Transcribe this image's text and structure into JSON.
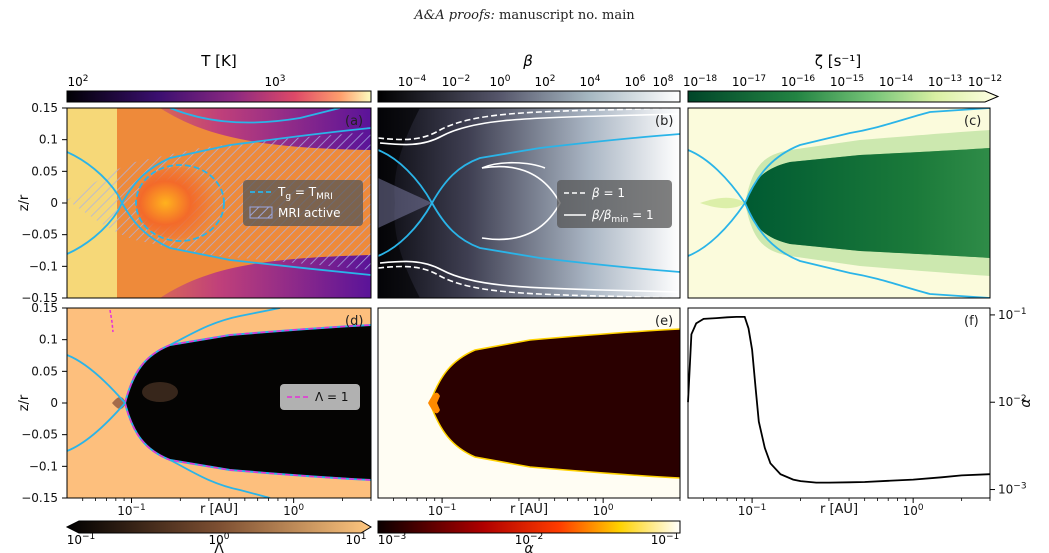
{
  "header": {
    "journal": "A&A proofs:",
    "manuscript": "manuscript no. main"
  },
  "colors": {
    "contour_cyan": "#2ab4e8",
    "lambda_magenta": "#e62fd8",
    "mri_hatch": "#9aa6e0"
  },
  "chart_data": [
    {
      "panel": "(a)",
      "type": "heatmap",
      "quantity": "T [K]",
      "colormap": "plasma",
      "colorbar": {
        "label": "T [K]",
        "scale": "log",
        "ticks": [
          "10^2",
          "10^3"
        ],
        "range": [
          80,
          2500
        ]
      },
      "ylabel": "z/r",
      "yticks": [
        "0.15",
        "0.1",
        "0.05",
        "0",
        "-0.05",
        "-0.1",
        "-0.15"
      ],
      "ylim": [
        -0.15,
        0.15
      ],
      "xlim": [
        0.04,
        3
      ],
      "xscale": "log",
      "legend": [
        "T_g = T_MRI",
        "MRI active"
      ]
    },
    {
      "panel": "(b)",
      "type": "heatmap",
      "quantity": "β",
      "colormap": "bone",
      "colorbar": {
        "label": "β",
        "scale": "log",
        "ticks": [
          "10^-4",
          "10^-2",
          "10^0",
          "10^2",
          "10^4",
          "10^6",
          "10^8"
        ],
        "range": [
          1e-05,
          300000000
        ]
      },
      "xlim": [
        0.04,
        3
      ],
      "ylim": [
        -0.15,
        0.15
      ],
      "legend": [
        "β = 1",
        "β/β_min = 1"
      ]
    },
    {
      "panel": "(c)",
      "type": "heatmap",
      "quantity": "ζ [s^-1]",
      "colormap": "YlGn",
      "colorbar": {
        "label": "ζ [s⁻¹]",
        "scale": "log",
        "ticks": [
          "10^-18",
          "10^-17",
          "10^-16",
          "10^-15",
          "10^-14",
          "10^-13",
          "10^-12"
        ],
        "range": [
          1e-18,
          1e-12
        ]
      },
      "xlim": [
        0.04,
        3
      ],
      "ylim": [
        -0.15,
        0.15
      ]
    },
    {
      "panel": "(d)",
      "type": "heatmap",
      "quantity": "Λ",
      "colormap": "copper",
      "colorbar": {
        "label": "Λ",
        "scale": "log",
        "ticks": [
          "10^-1",
          "10^0",
          "10^1"
        ],
        "range": [
          0.1,
          10
        ]
      },
      "xlabel": "r [AU]",
      "xticks": [
        "10^-1",
        "10^0"
      ],
      "ylabel": "z/r",
      "yticks": [
        "0.15",
        "0.1",
        "0.05",
        "0",
        "-0.05",
        "-0.1",
        "-0.15"
      ],
      "xlim": [
        0.04,
        3
      ],
      "ylim": [
        -0.15,
        0.15
      ],
      "legend": [
        "Λ = 1"
      ]
    },
    {
      "panel": "(e)",
      "type": "heatmap",
      "quantity": "α",
      "colormap": "hot",
      "colorbar": {
        "label": "α",
        "scale": "log",
        "ticks": [
          "10^-3",
          "10^-2",
          "10^-1"
        ],
        "range": [
          0.001,
          0.1
        ]
      },
      "xlabel": "r [AU]",
      "xticks": [
        "10^-1",
        "10^0"
      ],
      "xlim": [
        0.04,
        3
      ],
      "ylim": [
        -0.15,
        0.15
      ]
    },
    {
      "panel": "(f)",
      "type": "line",
      "xlabel": "r [AU]",
      "xticks": [
        "10^-1",
        "10^0"
      ],
      "ylabel": "α",
      "yticks": [
        "10^-1",
        "10^-2",
        "10^-3"
      ],
      "xscale": "log",
      "yscale": "log",
      "xlim": [
        0.04,
        3
      ],
      "ylim": [
        0.0008,
        0.12
      ],
      "series": [
        {
          "x": [
            0.04,
            0.042,
            0.045,
            0.05,
            0.06,
            0.07,
            0.08,
            0.09,
            0.095,
            0.1,
            0.105,
            0.11,
            0.12,
            0.13,
            0.15,
            0.18,
            0.2,
            0.25,
            0.3,
            0.4,
            0.5,
            0.7,
            1.0,
            1.5,
            2.0,
            3.0
          ],
          "y": [
            0.01,
            0.06,
            0.08,
            0.09,
            0.092,
            0.094,
            0.095,
            0.095,
            0.07,
            0.04,
            0.015,
            0.006,
            0.003,
            0.002,
            0.0015,
            0.0013,
            0.00125,
            0.0012,
            0.0012,
            0.00121,
            0.00122,
            0.00126,
            0.0013,
            0.00138,
            0.00145,
            0.0015
          ]
        }
      ]
    }
  ]
}
